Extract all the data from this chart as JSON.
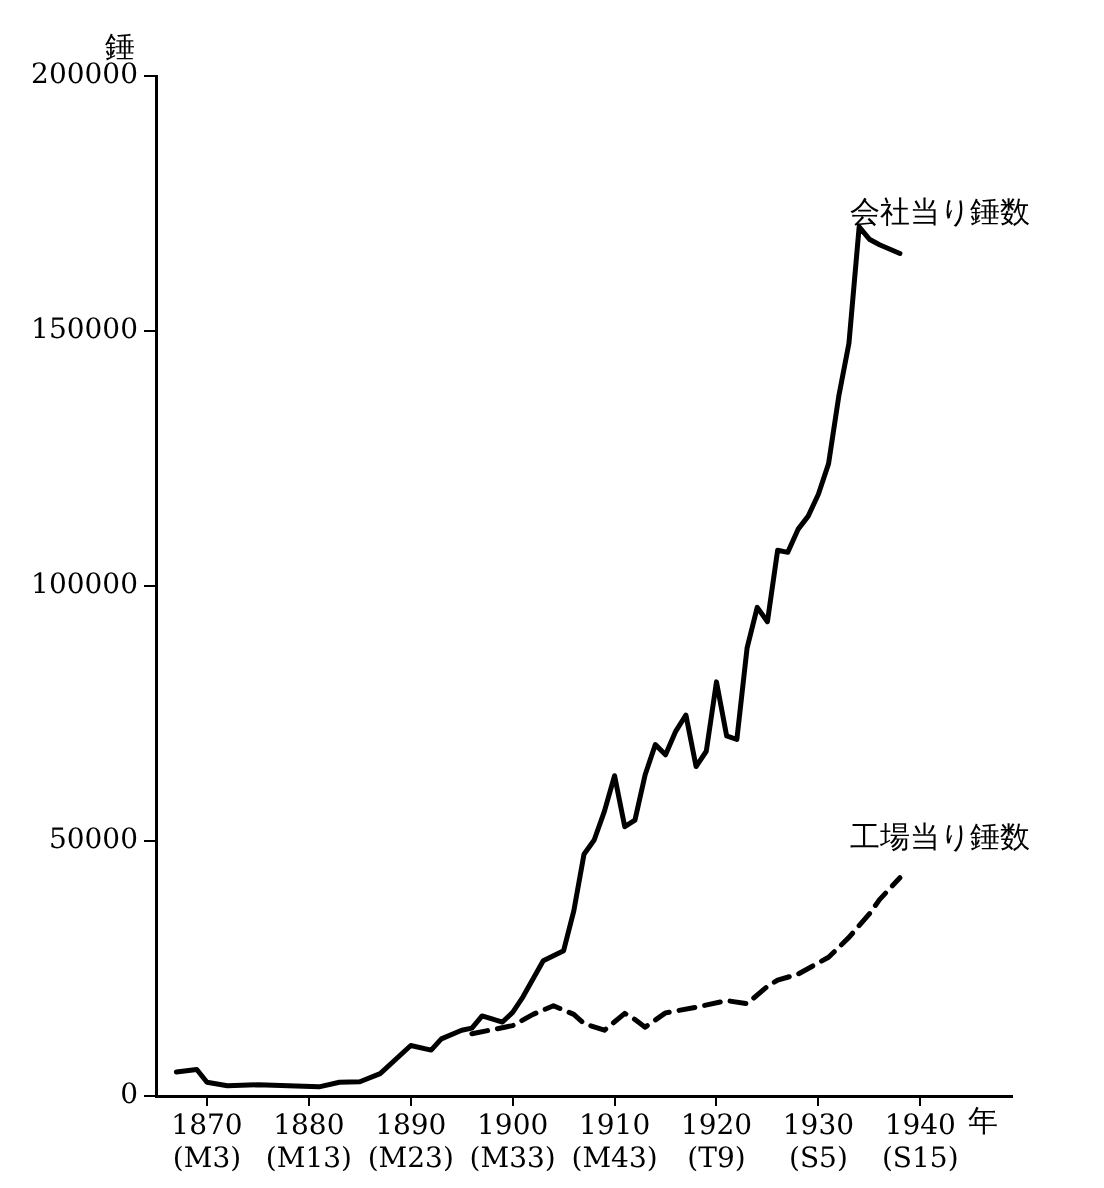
{
  "chart_data": {
    "type": "line",
    "xlabel": "年",
    "ylabel": "錘",
    "xlim": [
      1865,
      1949
    ],
    "ylim": [
      0,
      200000
    ],
    "xticks": [
      1870,
      1880,
      1890,
      1900,
      1910,
      1920,
      1930,
      1940
    ],
    "annotations": [
      "(M3)",
      "(M13)",
      "(M23)",
      "(M33)",
      "(M43)",
      "(T9)",
      "(S5)",
      "(S15)"
    ],
    "yticks": [
      0,
      50000,
      100000,
      150000,
      200000
    ],
    "legend": false,
    "marker": "none",
    "series": [
      {
        "name": "会社当り錘数",
        "color": "#000000",
        "line_style": "solid",
        "x": [
          1867,
          1869,
          1870,
          1872,
          1875,
          1878,
          1881,
          1883,
          1885,
          1887,
          1890,
          1892,
          1893,
          1895,
          1896,
          1897,
          1899,
          1900,
          1901,
          1903,
          1905,
          1906,
          1907,
          1908,
          1909,
          1910,
          1911,
          1912,
          1913,
          1914,
          1915,
          1916,
          1917,
          1918,
          1919,
          1920,
          1921,
          1922,
          1923,
          1924,
          1925,
          1926,
          1927,
          1928,
          1929,
          1930,
          1931,
          1932,
          1933,
          1934,
          1935,
          1936,
          1938
        ],
        "values": [
          4700,
          5200,
          2700,
          2000,
          2200,
          2000,
          1800,
          2700,
          2800,
          4400,
          9900,
          9000,
          11200,
          12900,
          13300,
          15700,
          14500,
          16400,
          19400,
          26500,
          28500,
          36300,
          47400,
          50200,
          55800,
          62800,
          52800,
          54100,
          63000,
          68900,
          66900,
          71500,
          74700,
          64600,
          67600,
          81200,
          70600,
          69900,
          87800,
          95800,
          93000,
          107000,
          106600,
          111100,
          113700,
          118000,
          124000,
          137200,
          147600,
          170400,
          168000,
          166900,
          165200
        ]
      },
      {
        "name": "工場当り錘数",
        "color": "#000000",
        "line_style": "dashed",
        "x": [
          1896,
          1898,
          1900,
          1902,
          1904,
          1906,
          1907,
          1909,
          1911,
          1912,
          1913,
          1915,
          1918,
          1921,
          1923,
          1925,
          1926,
          1928,
          1931,
          1933,
          1935,
          1936,
          1938
        ],
        "values": [
          12200,
          13000,
          13800,
          16000,
          17700,
          16000,
          14200,
          12900,
          16200,
          15000,
          13500,
          16300,
          17400,
          18700,
          18100,
          21500,
          22700,
          23900,
          27200,
          31100,
          35700,
          38500,
          42800
        ]
      }
    ]
  }
}
